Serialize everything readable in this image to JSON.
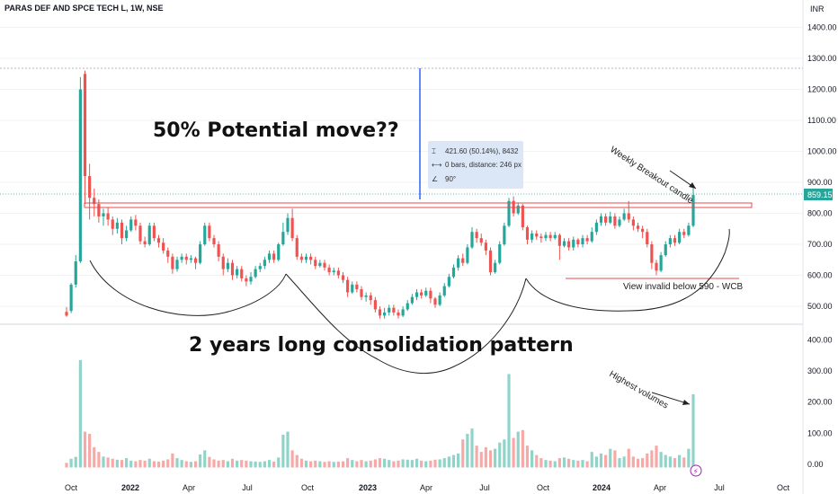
{
  "header": {
    "symbol_title": "PARAS DEF AND SPCE TECH L, 1W, NSE",
    "currency": "INR"
  },
  "annotations": {
    "potential_move": "50% Potential move??",
    "consolidation": "2 years long consolidation pattern",
    "weekly_breakout": "Weekly Breakout candle",
    "invalid_below": "View invalid below 590 - WCB",
    "highest_volumes": "Highest volumes"
  },
  "measure_tool": {
    "line1": "421.60 (50.14%), 8432",
    "line2": "0 bars, distance: 246 px",
    "line3": "90°"
  },
  "price_label": "859.15",
  "colors": {
    "up": "#26a69a",
    "down": "#ef5350",
    "volume_up": "#8fd3c9",
    "volume_down": "#f7a9a7",
    "resistance_box": "#e5484d",
    "measure_line": "#2962ff",
    "price_tag_bg": "#26a69a"
  },
  "chart_data": {
    "type": "candlestick",
    "title": "PARAS DEF AND SPCE TECH L, 1W, NSE",
    "price_axis": {
      "label": "INR",
      "ticks": [
        1400,
        1300,
        1200,
        1100,
        1000,
        900,
        800,
        700,
        600,
        500
      ],
      "range": [
        440,
        1440
      ]
    },
    "volume_axis": {
      "ticks": [
        "400.00",
        "300.00",
        "200.00",
        "100.00",
        "0.00"
      ],
      "range": [
        -30,
        430
      ]
    },
    "x_ticks": [
      {
        "label": "Oct",
        "bold": false
      },
      {
        "label": "2022",
        "bold": true
      },
      {
        "label": "Apr",
        "bold": false
      },
      {
        "label": "Jul",
        "bold": false
      },
      {
        "label": "Oct",
        "bold": false
      },
      {
        "label": "2023",
        "bold": true
      },
      {
        "label": "Apr",
        "bold": false
      },
      {
        "label": "Jul",
        "bold": false
      },
      {
        "label": "Oct",
        "bold": false
      },
      {
        "label": "2024",
        "bold": true
      },
      {
        "label": "Apr",
        "bold": false
      },
      {
        "label": "Jul",
        "bold": false
      },
      {
        "label": "Oct",
        "bold": false
      }
    ],
    "candles": [
      [
        482,
        470,
        498,
        466,
        5
      ],
      [
        485,
        570,
        575,
        478,
        18
      ],
      [
        570,
        645,
        665,
        560,
        24
      ],
      [
        645,
        1200,
        1240,
        640,
        335
      ],
      [
        1250,
        920,
        1260,
        830,
        105
      ],
      [
        920,
        850,
        960,
        780,
        98
      ],
      [
        850,
        830,
        880,
        790,
        55
      ],
      [
        830,
        790,
        845,
        770,
        40
      ],
      [
        790,
        800,
        815,
        760,
        25
      ],
      [
        800,
        780,
        820,
        760,
        22
      ],
      [
        780,
        750,
        790,
        730,
        18
      ],
      [
        750,
        770,
        785,
        735,
        15
      ],
      [
        770,
        720,
        780,
        700,
        14
      ],
      [
        720,
        745,
        760,
        710,
        20
      ],
      [
        745,
        780,
        790,
        740,
        12
      ],
      [
        780,
        760,
        795,
        745,
        10
      ],
      [
        760,
        710,
        770,
        700,
        14
      ],
      [
        710,
        700,
        725,
        690,
        12
      ],
      [
        700,
        760,
        770,
        695,
        18
      ],
      [
        760,
        720,
        770,
        710,
        10
      ],
      [
        720,
        705,
        730,
        690,
        9
      ],
      [
        705,
        680,
        720,
        670,
        12
      ],
      [
        680,
        660,
        690,
        640,
        16
      ],
      [
        660,
        620,
        670,
        605,
        35
      ],
      [
        620,
        650,
        660,
        612,
        20
      ],
      [
        650,
        660,
        670,
        640,
        14
      ],
      [
        660,
        650,
        670,
        635,
        10
      ],
      [
        650,
        655,
        665,
        640,
        8
      ],
      [
        655,
        640,
        660,
        620,
        10
      ],
      [
        640,
        700,
        710,
        635,
        32
      ],
      [
        700,
        760,
        770,
        695,
        45
      ],
      [
        760,
        720,
        770,
        710,
        24
      ],
      [
        720,
        700,
        730,
        690,
        16
      ],
      [
        700,
        660,
        710,
        645,
        12
      ],
      [
        660,
        620,
        670,
        600,
        14
      ],
      [
        620,
        640,
        655,
        610,
        10
      ],
      [
        640,
        600,
        650,
        585,
        18
      ],
      [
        600,
        620,
        630,
        590,
        12
      ],
      [
        620,
        590,
        630,
        580,
        14
      ],
      [
        590,
        580,
        600,
        565,
        12
      ],
      [
        580,
        595,
        610,
        570,
        10
      ],
      [
        595,
        620,
        630,
        590,
        9
      ],
      [
        620,
        630,
        640,
        610,
        8
      ],
      [
        630,
        650,
        660,
        620,
        10
      ],
      [
        650,
        670,
        680,
        640,
        14
      ],
      [
        670,
        650,
        680,
        640,
        9
      ],
      [
        650,
        700,
        705,
        645,
        22
      ],
      [
        700,
        740,
        770,
        695,
        95
      ],
      [
        740,
        785,
        800,
        730,
        105
      ],
      [
        785,
        720,
        815,
        710,
        45
      ],
      [
        720,
        660,
        730,
        650,
        30
      ],
      [
        660,
        650,
        670,
        640,
        18
      ],
      [
        650,
        660,
        670,
        640,
        12
      ],
      [
        660,
        650,
        670,
        635,
        10
      ],
      [
        650,
        630,
        660,
        620,
        12
      ],
      [
        630,
        640,
        650,
        625,
        10
      ],
      [
        640,
        625,
        650,
        615,
        8
      ],
      [
        625,
        610,
        635,
        600,
        10
      ],
      [
        610,
        615,
        625,
        600,
        8
      ],
      [
        615,
        600,
        625,
        590,
        9
      ],
      [
        600,
        585,
        610,
        575,
        10
      ],
      [
        585,
        545,
        595,
        530,
        20
      ],
      [
        545,
        570,
        580,
        540,
        14
      ],
      [
        570,
        555,
        580,
        545,
        10
      ],
      [
        555,
        530,
        565,
        520,
        14
      ],
      [
        530,
        535,
        545,
        515,
        10
      ],
      [
        535,
        520,
        545,
        505,
        12
      ],
      [
        520,
        490,
        530,
        480,
        16
      ],
      [
        490,
        470,
        500,
        460,
        20
      ],
      [
        470,
        480,
        495,
        460,
        18
      ],
      [
        480,
        495,
        505,
        470,
        14
      ],
      [
        495,
        480,
        505,
        470,
        10
      ],
      [
        480,
        470,
        490,
        460,
        12
      ],
      [
        470,
        490,
        500,
        465,
        16
      ],
      [
        490,
        510,
        520,
        485,
        15
      ],
      [
        510,
        530,
        540,
        505,
        14
      ],
      [
        530,
        545,
        555,
        520,
        18
      ],
      [
        545,
        535,
        555,
        525,
        12
      ],
      [
        535,
        550,
        560,
        530,
        10
      ],
      [
        550,
        525,
        560,
        510,
        12
      ],
      [
        525,
        505,
        530,
        495,
        15
      ],
      [
        505,
        535,
        545,
        500,
        16
      ],
      [
        535,
        565,
        575,
        530,
        20
      ],
      [
        565,
        595,
        605,
        560,
        25
      ],
      [
        595,
        625,
        635,
        590,
        30
      ],
      [
        625,
        655,
        665,
        615,
        35
      ],
      [
        655,
        640,
        670,
        630,
        80
      ],
      [
        640,
        690,
        700,
        635,
        98
      ],
      [
        690,
        740,
        755,
        685,
        115
      ],
      [
        740,
        720,
        750,
        705,
        60
      ],
      [
        720,
        705,
        735,
        695,
        40
      ],
      [
        705,
        680,
        715,
        665,
        55
      ],
      [
        680,
        610,
        690,
        600,
        45
      ],
      [
        610,
        640,
        650,
        605,
        50
      ],
      [
        640,
        700,
        710,
        635,
        70
      ],
      [
        700,
        760,
        770,
        695,
        80
      ],
      [
        760,
        840,
        850,
        755,
        290
      ],
      [
        840,
        800,
        855,
        790,
        85
      ],
      [
        800,
        825,
        835,
        795,
        105
      ],
      [
        825,
        755,
        830,
        745,
        110
      ],
      [
        755,
        715,
        760,
        700,
        60
      ],
      [
        715,
        735,
        745,
        705,
        45
      ],
      [
        735,
        725,
        745,
        715,
        30
      ],
      [
        725,
        720,
        735,
        705,
        20
      ],
      [
        720,
        730,
        740,
        710,
        14
      ],
      [
        730,
        720,
        740,
        710,
        12
      ],
      [
        720,
        730,
        740,
        715,
        10
      ],
      [
        730,
        695,
        735,
        650,
        20
      ],
      [
        695,
        710,
        720,
        690,
        22
      ],
      [
        710,
        690,
        720,
        680,
        18
      ],
      [
        690,
        715,
        725,
        680,
        14
      ],
      [
        715,
        700,
        720,
        690,
        12
      ],
      [
        700,
        720,
        730,
        690,
        14
      ],
      [
        720,
        710,
        730,
        700,
        10
      ],
      [
        710,
        740,
        755,
        705,
        40
      ],
      [
        740,
        770,
        780,
        730,
        25
      ],
      [
        770,
        790,
        800,
        760,
        35
      ],
      [
        790,
        770,
        800,
        760,
        30
      ],
      [
        770,
        790,
        805,
        765,
        50
      ],
      [
        790,
        760,
        800,
        750,
        45
      ],
      [
        760,
        780,
        790,
        755,
        20
      ],
      [
        780,
        800,
        815,
        775,
        25
      ],
      [
        800,
        780,
        840,
        770,
        50
      ],
      [
        780,
        760,
        790,
        745,
        25
      ],
      [
        760,
        750,
        770,
        740,
        18
      ],
      [
        750,
        740,
        760,
        720,
        20
      ],
      [
        740,
        700,
        750,
        690,
        35
      ],
      [
        700,
        640,
        710,
        620,
        45
      ],
      [
        640,
        615,
        650,
        600,
        60
      ],
      [
        615,
        665,
        675,
        610,
        40
      ],
      [
        665,
        700,
        710,
        660,
        30
      ],
      [
        700,
        720,
        730,
        690,
        25
      ],
      [
        720,
        705,
        730,
        695,
        20
      ],
      [
        705,
        740,
        750,
        700,
        30
      ],
      [
        740,
        730,
        750,
        720,
        22
      ],
      [
        730,
        760,
        770,
        725,
        50
      ],
      [
        760,
        859,
        885,
        755,
        225
      ]
    ]
  }
}
